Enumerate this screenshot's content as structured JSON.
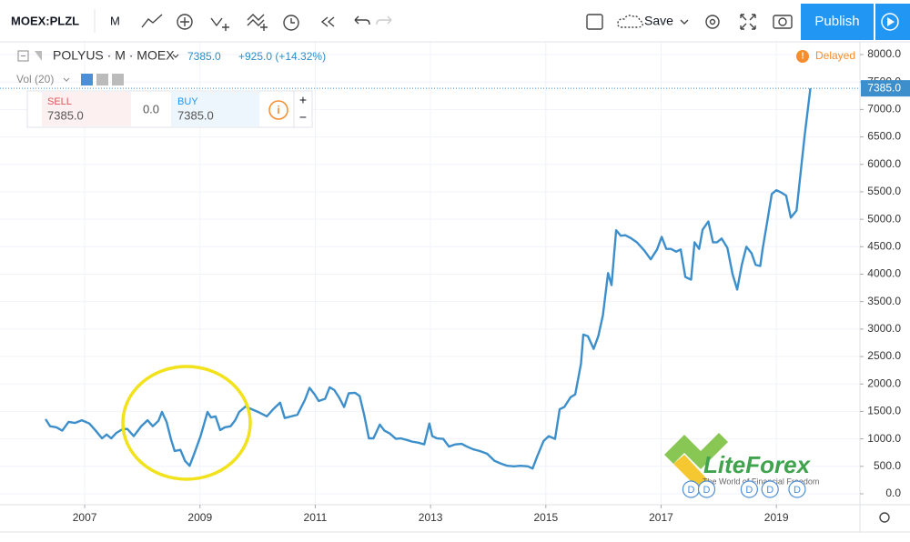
{
  "toolbar": {
    "symbol": "MOEX:PLZL",
    "interval": "M",
    "save": "Save",
    "publish": "Publish"
  },
  "legend": {
    "name": "POLYUS · M · MOEX",
    "last": "7385.0",
    "change": "+925.0 (+14.32%)",
    "delayed": "Delayed",
    "volume": "Vol (20)"
  },
  "trade": {
    "sell_label": "SELL",
    "sell_price": "7385.0",
    "spread": "0.0",
    "buy_label": "BUY",
    "buy_price": "7385.0"
  },
  "watermark": {
    "brand": "LiteForex",
    "slogan": "The World of Financial Freedom"
  },
  "chart_data": {
    "type": "line",
    "x": [
      2006.32,
      2006.4,
      2006.51,
      2006.61,
      2006.72,
      2006.83,
      2006.95,
      2007.08,
      2007.19,
      2007.3,
      2007.38,
      2007.46,
      2007.55,
      2007.66,
      2007.74,
      2007.85,
      2007.98,
      2008.09,
      2008.18,
      2008.28,
      2008.34,
      2008.42,
      2008.5,
      2008.56,
      2008.66,
      2008.74,
      2008.82,
      2008.9,
      2009.01,
      2009.13,
      2009.19,
      2009.27,
      2009.35,
      2009.43,
      2009.53,
      2009.61,
      2009.68,
      2009.79,
      2009.92,
      2010.03,
      2010.16,
      2010.27,
      2010.39,
      2010.47,
      2010.58,
      2010.69,
      2010.82,
      2010.9,
      2010.99,
      2011.06,
      2011.17,
      2011.25,
      2011.33,
      2011.41,
      2011.5,
      2011.58,
      2011.69,
      2011.77,
      2011.85,
      2011.93,
      2012.01,
      2012.12,
      2012.2,
      2012.29,
      2012.4,
      2012.48,
      2012.59,
      2012.68,
      2012.79,
      2012.89,
      2012.98,
      2013.03,
      2013.11,
      2013.22,
      2013.32,
      2013.43,
      2013.54,
      2013.63,
      2013.74,
      2013.85,
      2013.98,
      2014.11,
      2014.22,
      2014.33,
      2014.45,
      2014.56,
      2014.69,
      2014.77,
      2014.85,
      2014.96,
      2015.05,
      2015.16,
      2015.24,
      2015.32,
      2015.43,
      2015.51,
      2015.61,
      2015.65,
      2015.73,
      2015.83,
      2015.91,
      2015.99,
      2016.08,
      2016.14,
      2016.22,
      2016.3,
      2016.38,
      2016.47,
      2016.58,
      2016.71,
      2016.82,
      2016.93,
      2017.01,
      2017.09,
      2017.17,
      2017.26,
      2017.34,
      2017.42,
      2017.52,
      2017.58,
      2017.66,
      2017.72,
      2017.82,
      2017.9,
      2017.97,
      2018.05,
      2018.15,
      2018.24,
      2018.32,
      2018.4,
      2018.48,
      2018.57,
      2018.64,
      2018.72,
      2018.76,
      2018.84,
      2018.92,
      2019.0,
      2019.08,
      2019.17,
      2019.25,
      2019.35,
      2019.43,
      2019.49,
      2019.59
    ],
    "series": [
      {
        "name": "POLYUS",
        "color": "#3d8fcc",
        "values": [
          1360,
          1230,
          1210,
          1150,
          1310,
          1290,
          1340,
          1280,
          1150,
          1010,
          1080,
          1010,
          1110,
          1180,
          1180,
          1050,
          1230,
          1340,
          1230,
          1330,
          1490,
          1310,
          980,
          780,
          800,
          600,
          510,
          730,
          1050,
          1490,
          1390,
          1410,
          1160,
          1210,
          1230,
          1340,
          1490,
          1590,
          1530,
          1480,
          1410,
          1540,
          1660,
          1380,
          1410,
          1440,
          1710,
          1930,
          1810,
          1690,
          1730,
          1940,
          1890,
          1760,
          1580,
          1830,
          1840,
          1780,
          1430,
          1010,
          1010,
          1260,
          1150,
          1100,
          1000,
          1010,
          980,
          950,
          930,
          900,
          1280,
          1050,
          1010,
          1000,
          860,
          900,
          910,
          860,
          810,
          780,
          730,
          600,
          550,
          510,
          500,
          510,
          500,
          460,
          680,
          960,
          1050,
          1000,
          1540,
          1580,
          1760,
          1810,
          2370,
          2900,
          2870,
          2640,
          2870,
          3250,
          4020,
          3800,
          4800,
          4700,
          4710,
          4660,
          4580,
          4430,
          4270,
          4450,
          4680,
          4460,
          4460,
          4410,
          4450,
          3950,
          3900,
          4580,
          4460,
          4810,
          4960,
          4580,
          4580,
          4650,
          4480,
          4000,
          3720,
          4170,
          4500,
          4380,
          4170,
          4150,
          4450,
          4950,
          5460,
          5530,
          5490,
          5430,
          5030,
          5160,
          5940,
          6520,
          7385
        ]
      }
    ],
    "dividend_label": "D",
    "dividends_x": [
      2017.52,
      2017.79,
      2018.53,
      2018.89,
      2019.36
    ],
    "xlim": [
      2005.53,
      2020.45
    ],
    "ylim": [
      -199,
      8232
    ],
    "xticks": [
      2007,
      2009,
      2011,
      2013,
      2015,
      2017,
      2019
    ],
    "yticks": [
      {
        "value": 0,
        "label": "0.0"
      },
      {
        "value": 500,
        "label": "500.0"
      },
      {
        "value": 1000,
        "label": "1000.0"
      },
      {
        "value": 1500,
        "label": "1500.0"
      },
      {
        "value": 2000,
        "label": "2000.0"
      },
      {
        "value": 2500,
        "label": "2500.0"
      },
      {
        "value": 3000,
        "label": "3000.0"
      },
      {
        "value": 3500,
        "label": "3500.0"
      },
      {
        "value": 4000,
        "label": "4000.0"
      },
      {
        "value": 4500,
        "label": "4500.0"
      },
      {
        "value": 5000,
        "label": "5000.0"
      },
      {
        "value": 5500,
        "label": "5500.0"
      },
      {
        "value": 6000,
        "label": "6000.0"
      },
      {
        "value": 6500,
        "label": "6500.0"
      },
      {
        "value": 7000,
        "label": "7000.0"
      },
      {
        "value": 7500,
        "label": "7500.0"
      },
      {
        "value": 8000,
        "label": "8000.0"
      }
    ],
    "grid": true
  }
}
